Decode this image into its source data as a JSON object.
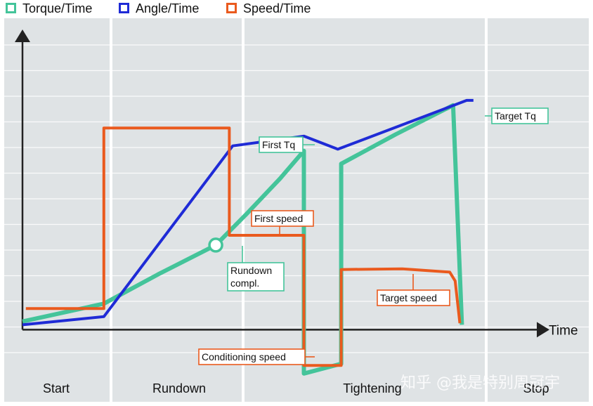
{
  "colors": {
    "torque": "#44c49a",
    "angle": "#1f2bd6",
    "speed": "#ea5a1e",
    "panel_bg": "#dfe3e5",
    "axis": "#222222"
  },
  "legend": [
    {
      "key": "torque",
      "label": "Torque/Time"
    },
    {
      "key": "angle",
      "label": "Angle/Time"
    },
    {
      "key": "speed",
      "label": "Speed/Time"
    }
  ],
  "axis": {
    "x_title": "Time"
  },
  "phases": [
    {
      "label": "Start",
      "x_start": 0,
      "x_end": 1.2
    },
    {
      "label": "Rundown",
      "x_start": 1.2,
      "x_end": 3.1
    },
    {
      "label": "Tightening",
      "x_start": 3.1,
      "x_end": 6.45
    },
    {
      "label": "Stop",
      "x_start": 6.45,
      "x_end": 7.75
    }
  ],
  "chart_data": {
    "type": "line",
    "title": "",
    "xlabel": "Time",
    "ylabel": "",
    "xlim": [
      0,
      7.75
    ],
    "ylim": [
      -1.75,
      10.5
    ],
    "series": [
      {
        "name": "Torque/Time",
        "key": "torque",
        "points": [
          [
            0,
            0.2
          ],
          [
            1.2,
            0.75
          ],
          [
            2.0,
            1.65
          ],
          [
            2.85,
            2.55
          ],
          [
            3.3,
            3.5
          ],
          [
            3.8,
            4.6
          ],
          [
            4.15,
            5.45
          ],
          [
            4.15,
            -1.4
          ],
          [
            4.7,
            -1.1
          ],
          [
            4.7,
            5.05
          ],
          [
            5.5,
            5.95
          ],
          [
            6.35,
            6.85
          ],
          [
            6.48,
            0.1
          ]
        ]
      },
      {
        "name": "Angle/Time",
        "key": "angle",
        "points": [
          [
            0,
            0.1
          ],
          [
            1.2,
            0.35
          ],
          [
            3.1,
            5.6
          ],
          [
            4.15,
            5.9
          ],
          [
            4.65,
            5.5
          ],
          [
            6.55,
            7.0
          ],
          [
            6.65,
            7.0
          ]
        ]
      },
      {
        "name": "Speed/Time",
        "key": "speed",
        "points": [
          [
            0.05,
            0.6
          ],
          [
            1.2,
            0.6
          ],
          [
            1.2,
            6.15
          ],
          [
            3.05,
            6.15
          ],
          [
            3.05,
            2.85
          ],
          [
            4.15,
            2.85
          ],
          [
            4.15,
            -1.15
          ],
          [
            4.7,
            -1.15
          ],
          [
            4.7,
            1.8
          ],
          [
            5.6,
            1.82
          ],
          [
            6.3,
            1.72
          ],
          [
            6.38,
            1.45
          ],
          [
            6.45,
            0.15
          ]
        ]
      }
    ],
    "markers": [
      {
        "series": "torque",
        "x": 2.85,
        "y": 2.55,
        "label": "Rundown compl."
      }
    ],
    "annotations": [
      {
        "text": "First Tq",
        "series": "torque",
        "x": 4.1,
        "y": 5.0
      },
      {
        "text": "Target Tq",
        "series": "torque",
        "x": 6.35,
        "y": 6.85
      },
      {
        "text": "First speed",
        "series": "speed",
        "x": 3.35,
        "y": 2.85
      },
      {
        "text": "Conditioning speed",
        "series": "speed",
        "x": 4.0,
        "y": -1.15
      },
      {
        "text": "Target speed",
        "series": "speed",
        "x": 5.3,
        "y": 1.8
      },
      {
        "text": "Rundown compl.",
        "series": "torque",
        "x": 2.85,
        "y": 2.55
      }
    ]
  },
  "watermark": "知乎 @我是特别周冠宇"
}
